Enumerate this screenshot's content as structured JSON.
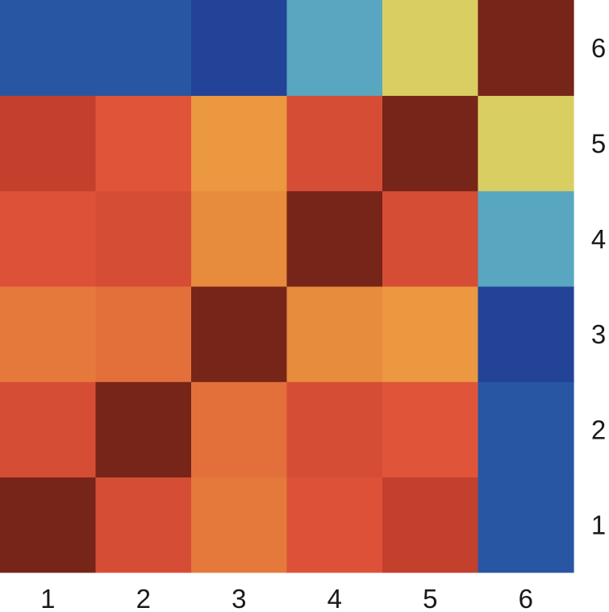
{
  "chart_data": {
    "type": "heatmap",
    "title": "",
    "xlabel": "",
    "ylabel": "",
    "x_categories": [
      "1",
      "2",
      "3",
      "4",
      "5",
      "6"
    ],
    "y_categories": [
      "1",
      "2",
      "3",
      "4",
      "5",
      "6"
    ],
    "y_order": "bottom-to-top",
    "y_tick_side": "right",
    "values": [
      [
        1.0,
        0.62,
        0.38,
        0.58,
        0.75,
        -0.72
      ],
      [
        0.62,
        1.0,
        0.42,
        0.62,
        0.55,
        -0.72
      ],
      [
        0.38,
        0.42,
        1.0,
        0.3,
        0.25,
        -0.8
      ],
      [
        0.58,
        0.62,
        0.3,
        1.0,
        0.62,
        -0.3
      ],
      [
        0.75,
        0.55,
        0.25,
        0.62,
        1.0,
        -0.15
      ],
      [
        -0.72,
        -0.72,
        -0.8,
        -0.3,
        -0.15,
        1.0
      ]
    ],
    "value_range": [
      -1,
      1
    ],
    "colormap": [
      "#2a237a",
      "#21479a",
      "#3d7fbe",
      "#3b9dd4",
      "#fad84a",
      "#f4bb48",
      "#e5833b",
      "#e0533a",
      "#bf3d2b",
      "#762518"
    ],
    "grid": false,
    "legend": "none"
  }
}
